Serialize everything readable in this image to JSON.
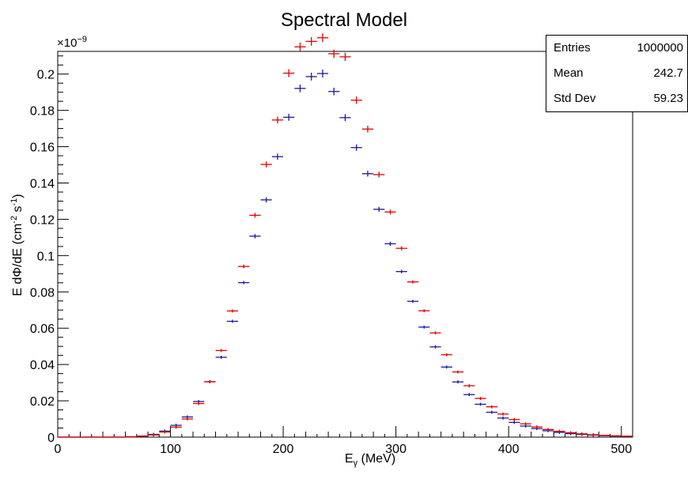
{
  "title": "Spectral Model",
  "stats": {
    "rows": [
      {
        "key": "Entries",
        "value": "1000000"
      },
      {
        "key": "Mean",
        "value": "242.7"
      },
      {
        "key": "Std Dev",
        "value": "59.23"
      }
    ]
  },
  "axes": {
    "xlabel_main": "E",
    "xlabel_sub": "γ",
    "xlabel_rest": " (MeV)",
    "ylabel_a": "E dΦ/dE (cm",
    "ylabel_sup1": "-2",
    "ylabel_b": " s",
    "ylabel_sup2": "-1",
    "ylabel_c": ")",
    "y_exponent_base": "×10",
    "y_exponent_power": "−9"
  },
  "chart_data": {
    "type": "scatter",
    "title": "Spectral Model",
    "xlabel": "E_γ (MeV)",
    "ylabel": "E dΦ/dE (cm^-2 s^-1)",
    "y_multiplier": "1e-9",
    "xlim": [
      0,
      510
    ],
    "ylim": [
      0,
      0.2125
    ],
    "x_ticks": [
      0,
      100,
      200,
      300,
      400,
      500
    ],
    "x_tick_labels": [
      "0",
      "100",
      "200",
      "300",
      "400",
      "500"
    ],
    "y_ticks": [
      0,
      0.02,
      0.04,
      0.06,
      0.08,
      0.1,
      0.12,
      0.14,
      0.16,
      0.18,
      0.2
    ],
    "y_tick_labels": [
      "0",
      "0.02",
      "0.04",
      "0.06",
      "0.08",
      "0.1",
      "0.12",
      "0.14",
      "0.16",
      "0.18",
      "0.2"
    ],
    "bin_width": 10,
    "grid": false,
    "series": [
      {
        "color": "#1a1a9a",
        "x": [
          5,
          15,
          25,
          35,
          45,
          55,
          65,
          75,
          85,
          95,
          105,
          115,
          125,
          135,
          145,
          155,
          165,
          175,
          185,
          195,
          205,
          215,
          225,
          235,
          245,
          255,
          265,
          275,
          285,
          295,
          305,
          315,
          325,
          335,
          345,
          355,
          365,
          375,
          385,
          395,
          405,
          415,
          425,
          435,
          445,
          455,
          465,
          475,
          485,
          495,
          505
        ],
        "values": [
          0,
          0,
          0,
          0,
          0,
          0,
          0.0002,
          0.0006,
          0.0015,
          0.0033,
          0.0065,
          0.0111,
          0.0196,
          0.0305,
          0.044,
          0.0638,
          0.0851,
          0.1107,
          0.1307,
          0.1545,
          0.1762,
          0.1921,
          0.1986,
          0.2003,
          0.1904,
          0.176,
          0.1595,
          0.1451,
          0.1255,
          0.1065,
          0.0912,
          0.0748,
          0.0606,
          0.0497,
          0.0386,
          0.0304,
          0.0234,
          0.0181,
          0.0137,
          0.0105,
          0.0081,
          0.0061,
          0.0047,
          0.0035,
          0.0026,
          0.0019,
          0.0015,
          0.0011,
          0.0008,
          0.0006,
          0.0004
        ]
      },
      {
        "color": "#e00000",
        "x": [
          5,
          15,
          25,
          35,
          45,
          55,
          65,
          75,
          85,
          95,
          105,
          115,
          125,
          135,
          145,
          155,
          165,
          175,
          185,
          195,
          205,
          215,
          225,
          235,
          245,
          255,
          265,
          275,
          285,
          295,
          305,
          315,
          325,
          335,
          345,
          355,
          365,
          375,
          385,
          395,
          405,
          415,
          425,
          435,
          445,
          455,
          465,
          475,
          485,
          495,
          505
        ],
        "values": [
          0,
          0,
          0,
          0,
          0,
          0,
          0.0002,
          0.0005,
          0.0012,
          0.0028,
          0.0055,
          0.01,
          0.0185,
          0.0305,
          0.0477,
          0.0695,
          0.094,
          0.1222,
          0.1502,
          0.1747,
          0.2005,
          0.215,
          0.218,
          0.22,
          0.2112,
          0.2095,
          0.1856,
          0.1697,
          0.1446,
          0.124,
          0.104,
          0.0855,
          0.0696,
          0.0574,
          0.0454,
          0.0359,
          0.0283,
          0.0213,
          0.0167,
          0.0127,
          0.0097,
          0.0073,
          0.0056,
          0.0042,
          0.0032,
          0.0024,
          0.0018,
          0.0013,
          0.001,
          0.0007,
          0.0005
        ]
      }
    ]
  }
}
